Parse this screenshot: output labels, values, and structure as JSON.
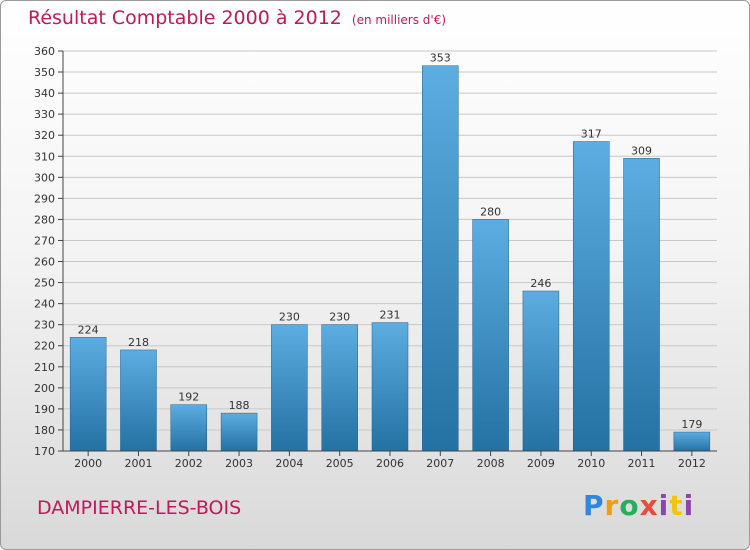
{
  "header": {
    "title": "Résultat Comptable 2000 à 2012",
    "unit": "(en milliers d'€)"
  },
  "footer": {
    "commune": "DAMPIERRE-LES-BOIS",
    "logo": "Proxiti"
  },
  "colors": {
    "title": "#c2185b",
    "bar_top": "#5dade2",
    "bar_bottom": "#2471a3",
    "grid": "#c8c8c8"
  },
  "chart_data": {
    "type": "bar",
    "title": "Résultat Comptable 2000 à 2012",
    "xlabel": "",
    "ylabel": "(en milliers d'€)",
    "categories": [
      "2000",
      "2001",
      "2002",
      "2003",
      "2004",
      "2005",
      "2006",
      "2007",
      "2008",
      "2009",
      "2010",
      "2011",
      "2012"
    ],
    "values": [
      224,
      218,
      192,
      188,
      230,
      230,
      231,
      353,
      280,
      246,
      317,
      309,
      179
    ],
    "ylim": [
      170,
      360
    ],
    "ytick_step": 10,
    "grid": true,
    "legend": "none"
  }
}
